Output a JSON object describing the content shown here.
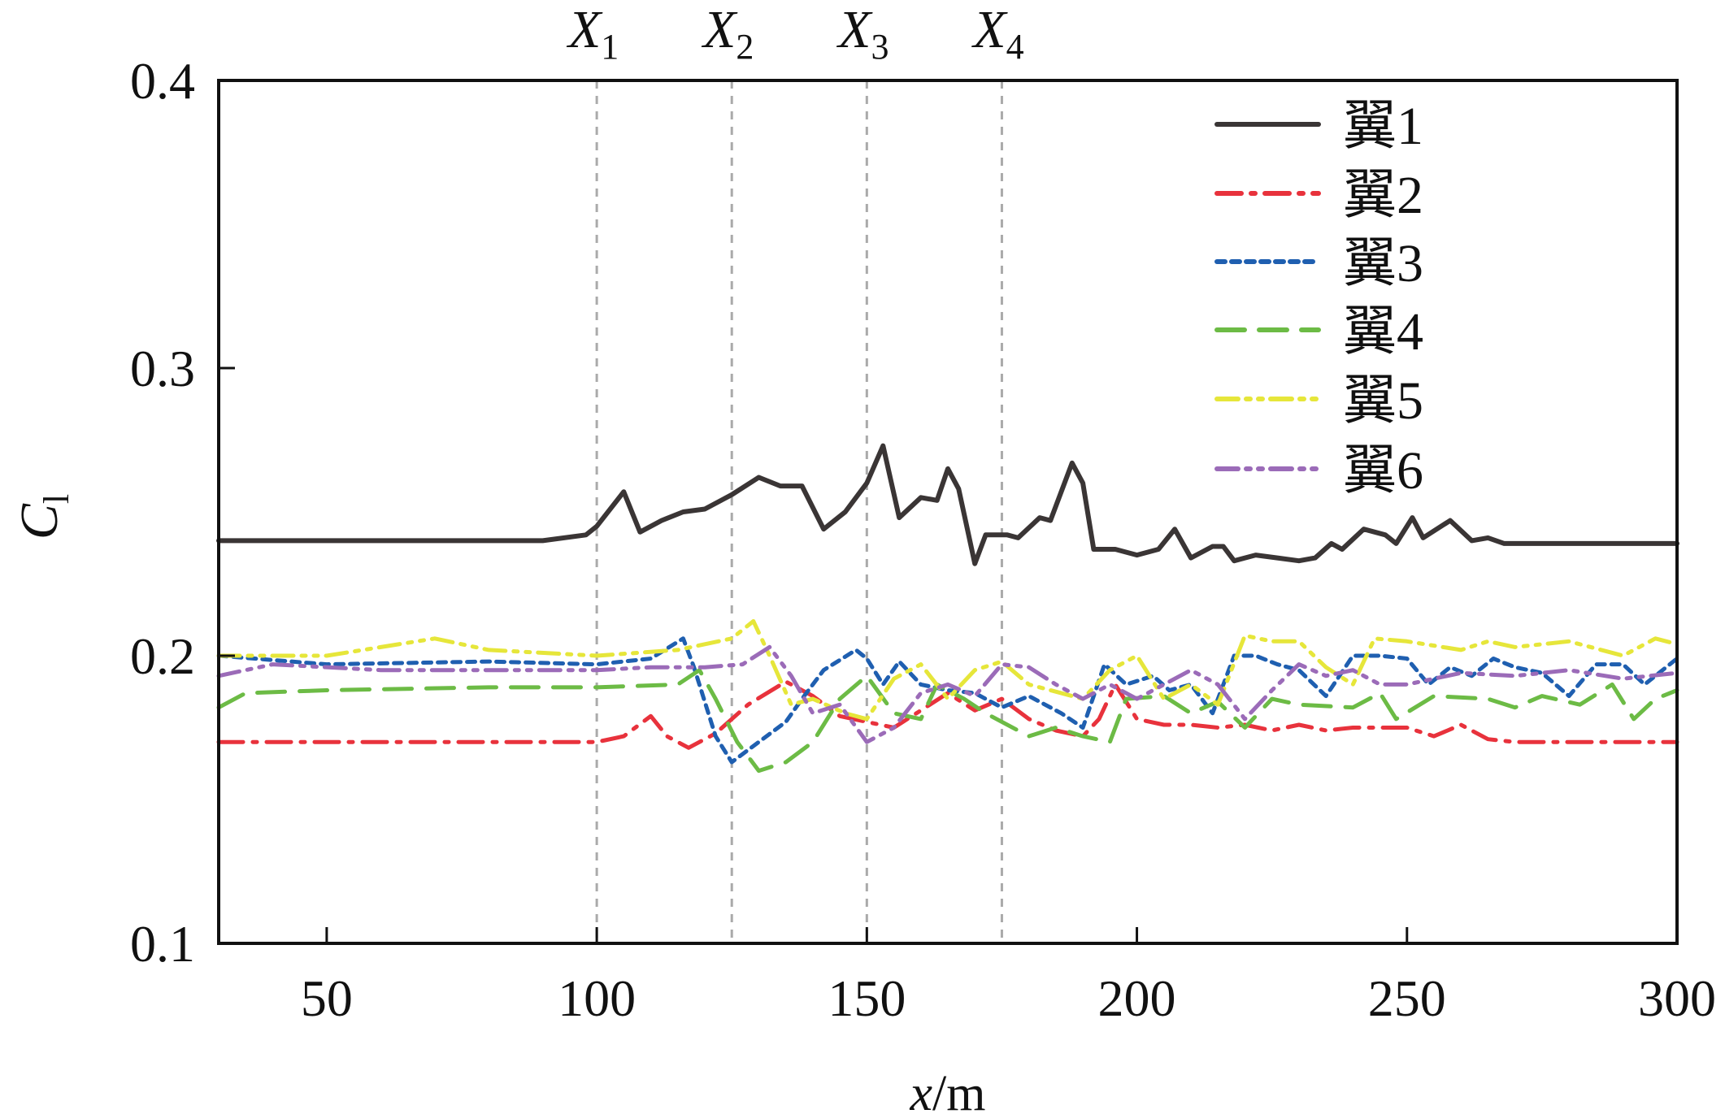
{
  "chart_data": {
    "type": "line",
    "title": "",
    "xlabel": {
      "var": "x",
      "unit": "/m"
    },
    "ylabel": {
      "var": "C",
      "sub": "l"
    },
    "xlim": [
      30,
      300
    ],
    "ylim": [
      0.1,
      0.4
    ],
    "xticks": [
      50,
      100,
      150,
      200,
      250,
      300
    ],
    "xtick_labels": [
      "50",
      "100",
      "150",
      "200",
      "250",
      "300"
    ],
    "yticks": [
      0.1,
      0.2,
      0.3,
      0.4
    ],
    "ytick_labels": [
      "0.1",
      "0.2",
      "0.3",
      "0.4"
    ],
    "grid": false,
    "legend_position": "top-right",
    "reference_lines": [
      {
        "x": 100,
        "label": "X",
        "sub": "1"
      },
      {
        "x": 125,
        "label": "X",
        "sub": "2"
      },
      {
        "x": 150,
        "label": "X",
        "sub": "3"
      },
      {
        "x": 175,
        "label": "X",
        "sub": "4"
      }
    ],
    "series": [
      {
        "name": "翼1",
        "color": "#3a3535",
        "style": "solid",
        "x": [
          30,
          90,
          98,
          100,
          105,
          108,
          112,
          116,
          120,
          125,
          130,
          134,
          138,
          142,
          146,
          150,
          153,
          156,
          160,
          163,
          165,
          167,
          170,
          172,
          176,
          178,
          182,
          184,
          188,
          190,
          192,
          196,
          200,
          204,
          207,
          210,
          214,
          216,
          218,
          222,
          226,
          230,
          233,
          236,
          238,
          242,
          246,
          248,
          251,
          253,
          258,
          262,
          265,
          268,
          300
        ],
        "y": [
          0.24,
          0.24,
          0.242,
          0.245,
          0.257,
          0.243,
          0.247,
          0.25,
          0.251,
          0.256,
          0.262,
          0.259,
          0.259,
          0.244,
          0.25,
          0.26,
          0.273,
          0.248,
          0.255,
          0.254,
          0.265,
          0.258,
          0.232,
          0.242,
          0.242,
          0.241,
          0.248,
          0.247,
          0.267,
          0.26,
          0.237,
          0.237,
          0.235,
          0.237,
          0.244,
          0.234,
          0.238,
          0.238,
          0.233,
          0.235,
          0.234,
          0.233,
          0.234,
          0.239,
          0.237,
          0.244,
          0.242,
          0.239,
          0.248,
          0.241,
          0.247,
          0.24,
          0.241,
          0.239,
          0.239
        ]
      },
      {
        "name": "翼2",
        "color": "#e8323c",
        "style": "dashdot",
        "x": [
          30,
          100,
          105,
          110,
          113,
          117,
          122,
          128,
          135,
          140,
          145,
          150,
          155,
          160,
          165,
          170,
          175,
          180,
          185,
          190,
          193,
          196,
          200,
          205,
          210,
          215,
          220,
          225,
          230,
          235,
          240,
          250,
          255,
          260,
          265,
          270,
          300
        ],
        "y": [
          0.17,
          0.17,
          0.172,
          0.179,
          0.172,
          0.168,
          0.173,
          0.183,
          0.191,
          0.186,
          0.179,
          0.177,
          0.175,
          0.181,
          0.187,
          0.181,
          0.185,
          0.178,
          0.174,
          0.172,
          0.178,
          0.19,
          0.178,
          0.176,
          0.176,
          0.175,
          0.176,
          0.174,
          0.176,
          0.174,
          0.175,
          0.175,
          0.172,
          0.176,
          0.171,
          0.17,
          0.17
        ]
      },
      {
        "name": "翼3",
        "color": "#1f5fb0",
        "style": "dotted",
        "x": [
          30,
          50,
          80,
          100,
          110,
          116,
          118,
          122,
          125,
          130,
          135,
          138,
          142,
          148,
          150,
          153,
          156,
          160,
          165,
          170,
          175,
          180,
          186,
          190,
          194,
          198,
          203,
          206,
          210,
          214,
          218,
          222,
          226,
          230,
          235,
          240,
          245,
          250,
          254,
          258,
          262,
          266,
          270,
          275,
          280,
          285,
          290,
          294,
          300
        ],
        "y": [
          0.2,
          0.197,
          0.198,
          0.197,
          0.199,
          0.206,
          0.196,
          0.172,
          0.163,
          0.17,
          0.177,
          0.185,
          0.195,
          0.202,
          0.199,
          0.19,
          0.198,
          0.19,
          0.188,
          0.187,
          0.182,
          0.186,
          0.18,
          0.175,
          0.197,
          0.19,
          0.193,
          0.188,
          0.19,
          0.18,
          0.2,
          0.2,
          0.197,
          0.195,
          0.186,
          0.2,
          0.2,
          0.199,
          0.19,
          0.196,
          0.193,
          0.199,
          0.196,
          0.194,
          0.186,
          0.197,
          0.197,
          0.19,
          0.199
        ]
      },
      {
        "name": "翼4",
        "color": "#6cbb45",
        "style": "dashed",
        "x": [
          30,
          35,
          50,
          80,
          100,
          115,
          119,
          122,
          126,
          130,
          135,
          140,
          145,
          150,
          155,
          160,
          163,
          168,
          172,
          180,
          185,
          190,
          195,
          198,
          205,
          210,
          215,
          220,
          225,
          230,
          240,
          245,
          248,
          255,
          265,
          270,
          275,
          282,
          288,
          292,
          296,
          300
        ],
        "y": [
          0.182,
          0.187,
          0.188,
          0.189,
          0.189,
          0.19,
          0.195,
          0.185,
          0.17,
          0.16,
          0.163,
          0.17,
          0.185,
          0.193,
          0.18,
          0.178,
          0.19,
          0.185,
          0.18,
          0.172,
          0.175,
          0.172,
          0.17,
          0.185,
          0.186,
          0.18,
          0.184,
          0.175,
          0.185,
          0.183,
          0.182,
          0.187,
          0.178,
          0.186,
          0.185,
          0.182,
          0.186,
          0.183,
          0.19,
          0.178,
          0.185,
          0.188
        ]
      },
      {
        "name": "翼5",
        "color": "#e6e63a",
        "style": "dashdotdot",
        "x": [
          30,
          50,
          70,
          80,
          100,
          115,
          125,
          129,
          132,
          136,
          140,
          146,
          150,
          155,
          160,
          165,
          170,
          175,
          180,
          190,
          195,
          200,
          205,
          210,
          215,
          220,
          225,
          230,
          235,
          240,
          244,
          250,
          260,
          265,
          270,
          280,
          290,
          296,
          300
        ],
        "y": [
          0.2,
          0.2,
          0.206,
          0.202,
          0.2,
          0.202,
          0.206,
          0.212,
          0.2,
          0.183,
          0.185,
          0.18,
          0.178,
          0.192,
          0.197,
          0.185,
          0.195,
          0.198,
          0.19,
          0.185,
          0.195,
          0.2,
          0.185,
          0.19,
          0.183,
          0.207,
          0.205,
          0.205,
          0.196,
          0.19,
          0.206,
          0.205,
          0.202,
          0.205,
          0.203,
          0.205,
          0.2,
          0.206,
          0.204
        ]
      },
      {
        "name": "翼6",
        "color": "#9b6bb8",
        "style": "dashdotdot",
        "x": [
          30,
          40,
          60,
          80,
          100,
          110,
          120,
          127,
          132,
          136,
          140,
          145,
          150,
          155,
          160,
          165,
          170,
          175,
          180,
          185,
          190,
          195,
          200,
          205,
          210,
          215,
          220,
          225,
          230,
          235,
          240,
          245,
          250,
          260,
          270,
          280,
          290,
          300
        ],
        "y": [
          0.193,
          0.197,
          0.195,
          0.195,
          0.195,
          0.196,
          0.196,
          0.197,
          0.203,
          0.193,
          0.18,
          0.183,
          0.17,
          0.175,
          0.187,
          0.19,
          0.186,
          0.197,
          0.196,
          0.19,
          0.185,
          0.19,
          0.185,
          0.19,
          0.195,
          0.19,
          0.178,
          0.188,
          0.197,
          0.193,
          0.195,
          0.19,
          0.19,
          0.194,
          0.193,
          0.195,
          0.192,
          0.194
        ]
      }
    ]
  }
}
